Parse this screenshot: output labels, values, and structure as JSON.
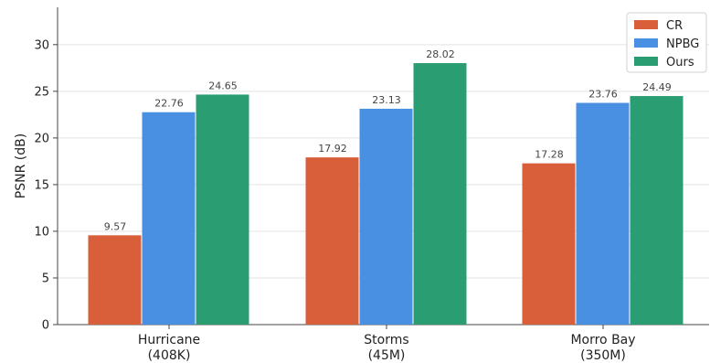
{
  "chart_data": {
    "type": "bar",
    "title": "",
    "xlabel": "",
    "ylabel": "PSNR (dB)",
    "ylim": [
      0,
      34
    ],
    "yticks": [
      0,
      5,
      10,
      15,
      20,
      25,
      30
    ],
    "grid": true,
    "legend_position": "top-right",
    "categories": [
      [
        "Hurricane",
        "(408K)"
      ],
      [
        "Storms",
        "(45M)"
      ],
      [
        "Morro Bay",
        "(350M)"
      ]
    ],
    "series": [
      {
        "name": "CR",
        "color": "#d95f3b",
        "values": [
          9.57,
          17.92,
          17.28
        ],
        "labels": [
          "9.57",
          "17.92",
          "17.28"
        ]
      },
      {
        "name": "NPBG",
        "color": "#4a90e2",
        "values": [
          22.76,
          23.13,
          23.76
        ],
        "labels": [
          "22.76",
          "23.13",
          "23.76"
        ]
      },
      {
        "name": "Ours",
        "color": "#2a9d72",
        "values": [
          24.65,
          28.02,
          24.49
        ],
        "labels": [
          "24.65",
          "28.02",
          "24.49"
        ]
      }
    ]
  }
}
